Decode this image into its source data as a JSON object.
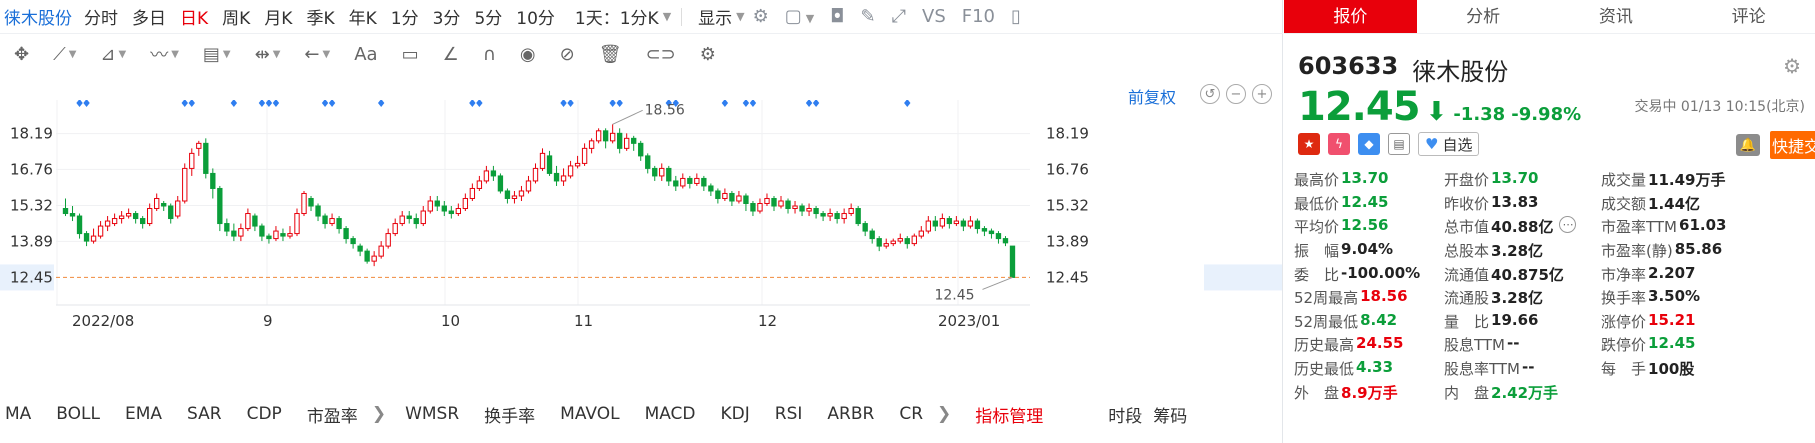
{
  "toolbar": {
    "stock_name": "徕木股份",
    "tabs": [
      "分时",
      "多日",
      "日K",
      "周K",
      "月K",
      "季K",
      "年K",
      "1分",
      "3分",
      "5分",
      "10分"
    ],
    "active_tab": "日K",
    "period_select": "1天：1分K",
    "display_label": "显示",
    "vs_label": "VS",
    "f10_label": "F10"
  },
  "chart": {
    "adjust_label": "前复权",
    "y_labels": [
      "18.19",
      "16.76",
      "15.32",
      "13.89",
      "12.45"
    ],
    "x_labels": [
      "2022/08",
      "9",
      "10",
      "11",
      "12",
      "2023/01"
    ],
    "max_annotation": "18.56",
    "min_annotation": "12.45",
    "current_price_label": "12.45",
    "up_color": "#e8000b",
    "down_color": "#0b9e3a"
  },
  "chart_data": {
    "type": "candlestick",
    "y_ticks": [
      18.19,
      16.76,
      15.32,
      13.89,
      12.45
    ],
    "ylim": [
      11.35,
      19.53
    ],
    "highlight_price": 12.45,
    "max_point": 18.56,
    "min_point": 12.45,
    "candles": [
      [
        15.2,
        15.0,
        15.6,
        14.9
      ],
      [
        15.0,
        14.9,
        15.3,
        14.7
      ],
      [
        14.9,
        14.2,
        15.0,
        14.0
      ],
      [
        14.2,
        13.9,
        14.3,
        13.7
      ],
      [
        13.9,
        14.1,
        14.4,
        13.8
      ],
      [
        14.1,
        14.5,
        14.7,
        14.0
      ],
      [
        14.5,
        14.7,
        14.9,
        14.3
      ],
      [
        14.6,
        14.8,
        15.0,
        14.5
      ],
      [
        14.8,
        14.9,
        15.1,
        14.6
      ],
      [
        14.9,
        15.0,
        15.2,
        14.8
      ],
      [
        15.0,
        14.8,
        15.1,
        14.6
      ],
      [
        14.8,
        14.6,
        14.9,
        14.4
      ],
      [
        14.6,
        15.2,
        15.4,
        14.5
      ],
      [
        15.2,
        15.6,
        15.8,
        15.1
      ],
      [
        15.4,
        15.3,
        15.5,
        15.1
      ],
      [
        15.3,
        14.8,
        15.4,
        14.6
      ],
      [
        14.9,
        15.5,
        15.7,
        14.8
      ],
      [
        15.5,
        16.8,
        17.0,
        15.4
      ],
      [
        16.8,
        17.4,
        17.6,
        16.5
      ],
      [
        17.6,
        17.8,
        17.9,
        17.3
      ],
      [
        17.8,
        16.6,
        18.0,
        16.4
      ],
      [
        16.6,
        16.0,
        16.8,
        15.6
      ],
      [
        16.0,
        14.6,
        16.1,
        14.3
      ],
      [
        14.6,
        14.3,
        14.8,
        14.1
      ],
      [
        14.3,
        14.1,
        14.6,
        13.9
      ],
      [
        14.1,
        14.4,
        14.6,
        13.9
      ],
      [
        14.4,
        15.0,
        15.2,
        14.3
      ],
      [
        14.9,
        14.5,
        15.0,
        14.3
      ],
      [
        14.5,
        14.1,
        14.6,
        13.9
      ],
      [
        14.1,
        14.0,
        14.2,
        13.8
      ],
      [
        14.0,
        14.3,
        14.5,
        13.9
      ],
      [
        14.2,
        14.1,
        14.4,
        13.9
      ],
      [
        14.1,
        14.2,
        14.5,
        14.0
      ],
      [
        14.2,
        15.0,
        15.2,
        14.1
      ],
      [
        15.0,
        15.8,
        15.9,
        14.9
      ],
      [
        15.6,
        15.3,
        15.7,
        15.1
      ],
      [
        15.3,
        14.9,
        15.4,
        14.7
      ],
      [
        14.9,
        14.6,
        15.0,
        14.4
      ],
      [
        14.6,
        14.8,
        15.0,
        14.5
      ],
      [
        14.8,
        14.4,
        14.9,
        14.2
      ],
      [
        14.4,
        14.0,
        14.5,
        13.8
      ],
      [
        14.0,
        13.8,
        14.1,
        13.6
      ],
      [
        13.7,
        13.5,
        13.8,
        13.3
      ],
      [
        13.5,
        13.1,
        13.6,
        13.0
      ],
      [
        13.1,
        13.3,
        13.5,
        12.9
      ],
      [
        13.3,
        13.7,
        13.9,
        13.2
      ],
      [
        13.7,
        14.2,
        14.4,
        13.6
      ],
      [
        14.2,
        14.6,
        14.8,
        14.1
      ],
      [
        14.6,
        14.9,
        15.1,
        14.5
      ],
      [
        14.9,
        14.8,
        15.1,
        14.6
      ],
      [
        14.8,
        14.6,
        15.0,
        14.4
      ],
      [
        14.6,
        15.1,
        15.3,
        14.5
      ],
      [
        15.1,
        15.5,
        15.7,
        15.0
      ],
      [
        15.5,
        15.3,
        15.7,
        15.1
      ],
      [
        15.3,
        15.1,
        15.5,
        14.9
      ],
      [
        15.1,
        15.0,
        15.3,
        14.8
      ],
      [
        15.0,
        15.2,
        15.4,
        14.9
      ],
      [
        15.2,
        15.6,
        15.8,
        15.1
      ],
      [
        15.6,
        16.0,
        16.2,
        15.5
      ],
      [
        16.0,
        16.3,
        16.5,
        15.9
      ],
      [
        16.3,
        16.7,
        16.9,
        16.2
      ],
      [
        16.7,
        16.5,
        16.9,
        16.3
      ],
      [
        16.5,
        15.9,
        16.6,
        15.8
      ],
      [
        15.9,
        15.6,
        16.0,
        15.4
      ],
      [
        15.6,
        15.7,
        15.9,
        15.4
      ],
      [
        15.7,
        15.9,
        16.1,
        15.5
      ],
      [
        15.9,
        16.3,
        16.5,
        15.8
      ],
      [
        16.3,
        16.8,
        17.0,
        16.2
      ],
      [
        16.8,
        17.4,
        17.6,
        16.7
      ],
      [
        17.3,
        16.6,
        17.5,
        16.5
      ],
      [
        16.6,
        16.3,
        16.9,
        16.1
      ],
      [
        16.3,
        16.5,
        16.8,
        16.1
      ],
      [
        16.5,
        16.9,
        17.1,
        16.4
      ],
      [
        16.9,
        17.0,
        17.3,
        16.8
      ],
      [
        17.0,
        17.6,
        17.8,
        16.9
      ],
      [
        17.6,
        17.9,
        18.0,
        17.4
      ],
      [
        17.9,
        18.3,
        18.4,
        17.8
      ],
      [
        18.3,
        17.9,
        18.4,
        17.6
      ],
      [
        17.9,
        18.2,
        18.56,
        17.8
      ],
      [
        18.2,
        17.6,
        18.4,
        17.4
      ],
      [
        17.6,
        18.0,
        18.2,
        17.5
      ],
      [
        18.0,
        17.8,
        18.1,
        17.5
      ],
      [
        17.8,
        17.3,
        17.9,
        17.1
      ],
      [
        17.3,
        16.8,
        17.4,
        16.6
      ],
      [
        16.8,
        16.5,
        16.9,
        16.3
      ],
      [
        16.5,
        16.8,
        17.0,
        16.3
      ],
      [
        16.8,
        16.3,
        16.9,
        16.1
      ],
      [
        16.3,
        16.1,
        16.5,
        15.9
      ],
      [
        16.1,
        16.4,
        16.6,
        16.0
      ],
      [
        16.4,
        16.2,
        16.5,
        16.0
      ],
      [
        16.2,
        16.4,
        16.6,
        16.1
      ],
      [
        16.4,
        16.1,
        16.5,
        15.9
      ],
      [
        16.1,
        15.9,
        16.2,
        15.7
      ],
      [
        15.9,
        15.6,
        16.0,
        15.4
      ],
      [
        15.6,
        15.8,
        16.0,
        15.5
      ],
      [
        15.8,
        15.5,
        15.9,
        15.3
      ],
      [
        15.5,
        15.7,
        15.9,
        15.4
      ],
      [
        15.7,
        15.4,
        15.8,
        15.1
      ],
      [
        15.4,
        15.1,
        15.5,
        14.9
      ],
      [
        15.1,
        15.4,
        15.6,
        15.0
      ],
      [
        15.4,
        15.6,
        15.8,
        15.3
      ],
      [
        15.6,
        15.3,
        15.7,
        15.1
      ],
      [
        15.3,
        15.5,
        15.7,
        15.2
      ],
      [
        15.5,
        15.2,
        15.6,
        15.0
      ],
      [
        15.2,
        15.3,
        15.5,
        15.0
      ],
      [
        15.3,
        15.1,
        15.4,
        14.9
      ],
      [
        15.1,
        15.2,
        15.4,
        14.9
      ],
      [
        15.2,
        15.0,
        15.3,
        14.8
      ],
      [
        15.0,
        14.9,
        15.1,
        14.7
      ],
      [
        14.9,
        15.0,
        15.2,
        14.7
      ],
      [
        15.0,
        14.8,
        15.1,
        14.6
      ],
      [
        14.8,
        15.0,
        15.2,
        14.6
      ],
      [
        15.0,
        15.2,
        15.4,
        14.9
      ],
      [
        15.2,
        14.6,
        15.3,
        14.5
      ],
      [
        14.6,
        14.3,
        14.7,
        14.1
      ],
      [
        14.3,
        14.0,
        14.4,
        13.8
      ],
      [
        14.0,
        13.7,
        14.1,
        13.5
      ],
      [
        13.7,
        13.8,
        14.0,
        13.6
      ],
      [
        13.8,
        13.9,
        14.0,
        13.7
      ],
      [
        13.9,
        14.0,
        14.2,
        13.8
      ],
      [
        14.0,
        13.8,
        14.1,
        13.6
      ],
      [
        13.8,
        14.1,
        14.2,
        13.7
      ],
      [
        14.1,
        14.3,
        14.5,
        14.0
      ],
      [
        14.3,
        14.7,
        14.9,
        14.2
      ],
      [
        14.7,
        14.5,
        14.9,
        14.3
      ],
      [
        14.5,
        14.8,
        15.0,
        14.4
      ],
      [
        14.8,
        14.6,
        14.9,
        14.4
      ],
      [
        14.6,
        14.7,
        14.9,
        14.5
      ],
      [
        14.7,
        14.5,
        14.8,
        14.3
      ],
      [
        14.5,
        14.7,
        14.9,
        14.4
      ],
      [
        14.7,
        14.4,
        14.8,
        14.2
      ],
      [
        14.4,
        14.3,
        14.5,
        14.1
      ],
      [
        14.3,
        14.2,
        14.4,
        14.0
      ],
      [
        14.2,
        14.0,
        14.3,
        13.8
      ],
      [
        14.0,
        13.83,
        14.1,
        13.7
      ],
      [
        13.7,
        12.45,
        13.7,
        12.45
      ]
    ],
    "markers": [
      2,
      3,
      17,
      18,
      24,
      28,
      29,
      30,
      37,
      38,
      45,
      58,
      59,
      71,
      72,
      78,
      79,
      86,
      87,
      94,
      97,
      98,
      106,
      107,
      120
    ]
  },
  "drawbar": {
    "text_tool": "Aa"
  },
  "indicators": {
    "items": [
      "MA",
      "BOLL",
      "EMA",
      "SAR",
      "CDP",
      "市盈率"
    ],
    "items2": [
      "WMSR",
      "换手率",
      "MAVOL",
      "MACD",
      "KDJ",
      "RSI",
      "ARBR",
      "CR"
    ],
    "manage_label": "指标管理",
    "right_labels": [
      "时段",
      "筹码"
    ]
  },
  "panel": {
    "tabs": [
      "报价",
      "分析",
      "资讯",
      "评论"
    ],
    "active_tab": "报价",
    "code": "603633",
    "name": "徕木股份",
    "price": "12.45",
    "change": "-1.38",
    "change_pct": "-9.98%",
    "status": "交易中 01/13 10:15(北京)",
    "fav_label": "自选",
    "quick_trade": "快捷交易",
    "stats": [
      [
        [
          "最高价",
          "13.70",
          "g"
        ],
        [
          "开盘价",
          "13.70",
          "g"
        ],
        [
          "成交量",
          "11.49万手",
          ""
        ]
      ],
      [
        [
          "最低价",
          "12.45",
          "g"
        ],
        [
          "昨收价",
          "13.83",
          ""
        ],
        [
          "成交额",
          "1.44亿",
          ""
        ]
      ],
      [
        [
          "平均价",
          "12.56",
          "g"
        ],
        [
          "总市值",
          "40.88亿",
          ""
        ],
        [
          "市盈率TTM",
          "61.03",
          ""
        ]
      ],
      [
        [
          "振　幅",
          "9.04%",
          ""
        ],
        [
          "总股本",
          "3.28亿",
          ""
        ],
        [
          "市盈率(静)",
          "85.86",
          ""
        ]
      ],
      [
        [
          "委　比",
          "-100.00%",
          ""
        ],
        [
          "流通值",
          "40.875亿",
          ""
        ],
        [
          "市净率",
          "2.207",
          ""
        ]
      ],
      [
        [
          "52周最高",
          "18.56",
          "r"
        ],
        [
          "流通股",
          "3.28亿",
          ""
        ],
        [
          "换手率",
          "3.50%",
          ""
        ]
      ],
      [
        [
          "52周最低",
          "8.42",
          "g"
        ],
        [
          "量　比",
          "19.66",
          ""
        ],
        [
          "涨停价",
          "15.21",
          "r"
        ]
      ],
      [
        [
          "历史最高",
          "24.55",
          "r"
        ],
        [
          "股息TTM",
          "--",
          ""
        ],
        [
          "跌停价",
          "12.45",
          "g"
        ]
      ],
      [
        [
          "历史最低",
          "4.33",
          "g"
        ],
        [
          "股息率TTM",
          "--",
          ""
        ],
        [
          "每　手",
          "100股",
          ""
        ]
      ],
      [
        [
          "外　盘",
          "8.9万手",
          "r"
        ],
        [
          "内　盘",
          "2.42万手",
          "g"
        ],
        [
          "",
          "",
          ""
        ]
      ]
    ]
  }
}
